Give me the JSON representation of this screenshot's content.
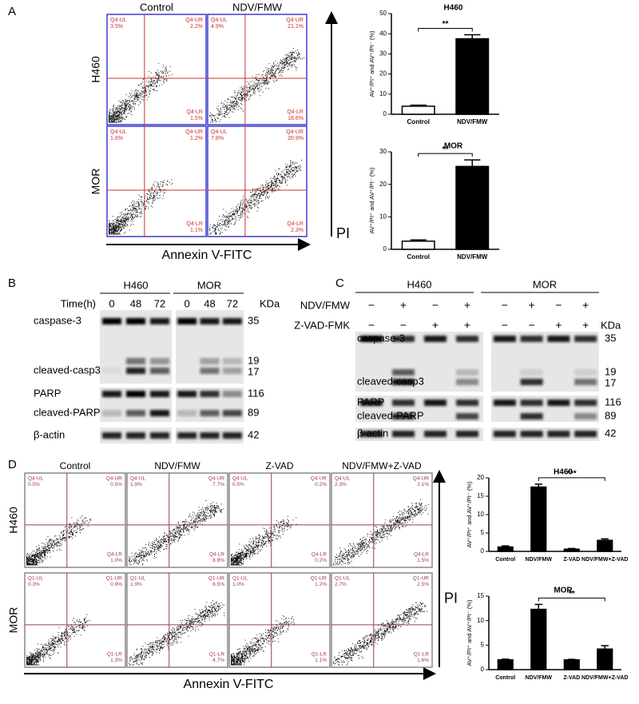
{
  "panels": [
    "A",
    "B",
    "C",
    "D"
  ],
  "flow_a": {
    "columns": [
      "Control",
      "NDV/FMW"
    ],
    "rows": [
      {
        "name": "H460",
        "quadrants": [
          "Q4-UL",
          "Q4-UR",
          "Q4-LR"
        ],
        "percents": [
          [
            "3.5%",
            "2.2%",
            "1.5%"
          ],
          [
            "4.9%",
            "21.1%",
            "18.6%"
          ]
        ]
      },
      {
        "name": "MOR",
        "quadrants": [
          "Q4-UL",
          "Q4-UR",
          "Q4-LR"
        ],
        "percents": [
          [
            "1.6%",
            "1.2%",
            "1.1%"
          ],
          [
            "7.8%",
            "20.9%",
            "2.3%"
          ]
        ]
      }
    ],
    "x_label": "Annexin V-FITC",
    "y_label": "PI"
  },
  "blot_b": {
    "cell_lines": [
      "H460",
      "MOR"
    ],
    "time_label": "Time(h)",
    "times": [
      0,
      48,
      72
    ],
    "unit": "KDa",
    "bands": [
      "caspase-3",
      "cleaved-casp3",
      "PARP",
      "cleaved-PARP",
      "β-actin"
    ],
    "markers": [
      35,
      19,
      17,
      116,
      89,
      42
    ]
  },
  "blot_c": {
    "cell_lines": [
      "H460",
      "MOR"
    ],
    "treatments": [
      {
        "name": "NDV/FMW",
        "signs": [
          "−",
          "+",
          "−",
          "+"
        ]
      },
      {
        "name": "Z-VAD-FMK",
        "signs": [
          "−",
          "−",
          "+",
          "+"
        ]
      }
    ],
    "unit": "KDa",
    "bands": [
      "caspase-3",
      "cleaved-casp3",
      "PARP",
      "cleaved-PARP",
      "β-actin"
    ],
    "markers": [
      35,
      19,
      17,
      116,
      89,
      42
    ]
  },
  "flow_d": {
    "columns": [
      "Control",
      "NDV/FMW",
      "Z-VAD",
      "NDV/FMW+Z-VAD"
    ],
    "rows": [
      {
        "name": "H460",
        "quadrants": [
          "Q4-UL",
          "Q4-UR",
          "Q4-LR"
        ],
        "percents": [
          [
            "0.5%",
            "0.5%",
            "1.0%"
          ],
          [
            "1.9%",
            "7.7%",
            "8.8%"
          ],
          [
            "0.5%",
            "0.2%",
            "0.2%"
          ],
          [
            "2.3%",
            "2.1%",
            "1.5%"
          ]
        ]
      },
      {
        "name": "MOR",
        "quadrants": [
          "Q1-UL",
          "Q1-UR",
          "Q1-LR"
        ],
        "percents": [
          [
            "0.3%",
            "0.9%",
            "1.3%"
          ],
          [
            "1.9%",
            "6.5%",
            "4.7%"
          ],
          [
            "1.0%",
            "1.2%",
            "1.1%"
          ],
          [
            "2.7%",
            "2.5%",
            "1.6%"
          ]
        ]
      }
    ],
    "x_label": "Annexin V-FITC",
    "y_label": "PI"
  },
  "chart_data": [
    {
      "type": "bar",
      "title": "H460",
      "categories": [
        "Control",
        "NDV/FMW"
      ],
      "values": [
        4,
        37.5
      ],
      "errors": [
        0.5,
        2
      ],
      "colors": [
        "#ffffff",
        "#000000"
      ],
      "ylim": [
        0,
        50
      ],
      "yticks": [
        0,
        10,
        20,
        30,
        40,
        50
      ],
      "ylabel": "AV⁺/PI⁺ and AV⁺/PI⁻ (%)",
      "annotation": "**"
    },
    {
      "type": "bar",
      "title": "MOR",
      "categories": [
        "Control",
        "NDV/FMW"
      ],
      "values": [
        2.5,
        25.5
      ],
      "errors": [
        0.4,
        2
      ],
      "colors": [
        "#ffffff",
        "#000000"
      ],
      "ylim": [
        0,
        30
      ],
      "yticks": [
        0,
        10,
        20,
        30
      ],
      "ylabel": "AV⁺/PI⁺ and AV⁺/PI⁻ (%)",
      "annotation": "**"
    },
    {
      "type": "bar",
      "title": "H460",
      "categories": [
        "Control",
        "NDV/FMW",
        "Z-VAD",
        "NDV/FMW+Z-VAD"
      ],
      "values": [
        1.2,
        17.5,
        0.6,
        3
      ],
      "errors": [
        0.3,
        0.8,
        0.2,
        0.4
      ],
      "colors": [
        "#000000",
        "#000000",
        "#000000",
        "#000000"
      ],
      "ylim": [
        0,
        20
      ],
      "yticks": [
        0,
        5,
        10,
        15,
        20
      ],
      "ylabel": "AV⁺/PI⁺ and AV⁺/PI⁻ (%)",
      "annotation": "***"
    },
    {
      "type": "bar",
      "title": "MOR",
      "categories": [
        "Control",
        "NDV/FMW",
        "Z-VAD",
        "NDV/FMW+Z-VAD"
      ],
      "values": [
        2,
        12.3,
        2,
        4.2
      ],
      "errors": [
        0.15,
        1,
        0.1,
        0.7
      ],
      "colors": [
        "#000000",
        "#000000",
        "#000000",
        "#000000"
      ],
      "ylim": [
        0,
        15
      ],
      "yticks": [
        0,
        5,
        10,
        15
      ],
      "ylabel": "AV⁺/PI⁺ and AV⁺/PI⁻ (%)",
      "annotation": "**"
    }
  ]
}
